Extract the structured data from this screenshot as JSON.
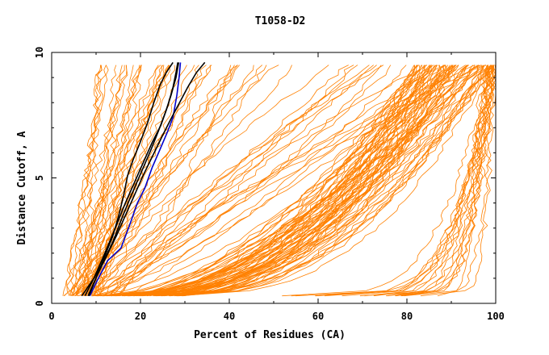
{
  "chart_data": {
    "type": "line",
    "title": "T1058-D2",
    "xlabel": "Percent of Residues (CA)",
    "ylabel": "Distance Cutoff, A",
    "xlim": [
      0,
      100
    ],
    "ylim": [
      0,
      10
    ],
    "x_ticks": [
      0,
      20,
      40,
      60,
      80,
      100
    ],
    "y_ticks": [
      0,
      5,
      10
    ],
    "grid": false,
    "legend": "none",
    "colors": {
      "background_models": "#ff8000",
      "highlight_black": "#000000",
      "highlight_blue": "#0000cc"
    },
    "background_models_note_count": 150,
    "series": [
      {
        "color": "#0000cc",
        "x": [
          8.6,
          10.5,
          12.6,
          15.6,
          17.5,
          19.3,
          21.0,
          22.6,
          24.3,
          26.0,
          27.3,
          28.2,
          28.7,
          29.0
        ],
        "y": [
          0.3,
          1.0,
          1.7,
          2.2,
          3.1,
          4.0,
          4.6,
          5.4,
          6.1,
          6.8,
          7.4,
          8.3,
          9.0,
          9.6
        ]
      },
      {
        "color": "#000000",
        "x": [
          6.8,
          9.5,
          11.8,
          13.9,
          15.6,
          17.2,
          18.9,
          20.6,
          22.3,
          24.1,
          25.6,
          26.9,
          28.0,
          28.6
        ],
        "y": [
          0.3,
          1.0,
          1.7,
          2.5,
          3.3,
          4.0,
          4.7,
          5.4,
          6.1,
          6.9,
          7.6,
          8.3,
          9.0,
          9.6
        ]
      },
      {
        "color": "#000000",
        "x": [
          8.4,
          10.2,
          12.0,
          13.8,
          15.1,
          16.2,
          17.1,
          18.3,
          19.9,
          21.6,
          23.0,
          24.4,
          25.8,
          27.3
        ],
        "y": [
          0.3,
          1.1,
          1.9,
          2.7,
          3.5,
          4.3,
          5.1,
          5.7,
          6.4,
          7.2,
          8.0,
          8.7,
          9.2,
          9.6
        ]
      },
      {
        "color": "#000000",
        "x": [
          7.5,
          9.5,
          11.5,
          13.4,
          15.0,
          16.6,
          18.6,
          20.6,
          22.6,
          24.6,
          26.2,
          27.3,
          28.0,
          28.4
        ],
        "y": [
          0.3,
          1.0,
          1.8,
          2.6,
          3.3,
          4.0,
          4.8,
          5.6,
          6.4,
          7.1,
          7.9,
          8.6,
          9.2,
          9.6
        ]
      },
      {
        "color": "#000000",
        "x": [
          8.2,
          10.2,
          12.4,
          14.6,
          16.6,
          18.6,
          20.6,
          22.8,
          25.0,
          27.0,
          28.8,
          30.6,
          32.6,
          34.5
        ],
        "y": [
          0.3,
          1.1,
          1.9,
          2.7,
          3.5,
          4.3,
          5.1,
          5.9,
          6.7,
          7.4,
          8.0,
          8.6,
          9.2,
          9.6
        ]
      }
    ]
  }
}
